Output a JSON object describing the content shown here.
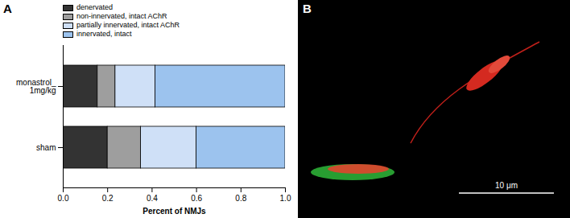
{
  "chart_data": {
    "type": "bar",
    "orientation": "horizontal",
    "stacked": true,
    "annotations": [
      "A"
    ],
    "categories": [
      "monastrol_\n1mg/kg",
      "sham"
    ],
    "series": [
      {
        "name": "denervated",
        "color": "#333333",
        "values": [
          0.155,
          0.2
        ]
      },
      {
        "name": "non-innervated, intact AChR",
        "color": "#9e9e9e",
        "values": [
          0.08,
          0.15
        ]
      },
      {
        "name": "partially innervated, intact AChR",
        "color": "#cfe0f7",
        "values": [
          0.18,
          0.25
        ]
      },
      {
        "name": "innervated, intact",
        "color": "#9cc3ee",
        "values": [
          0.585,
          0.4
        ]
      }
    ],
    "x_label": "Percent of NMJs",
    "xlim": [
      0,
      1
    ],
    "xticks": [
      {
        "value": 0,
        "label": "0.0"
      },
      {
        "value": 0.2,
        "label": "0.2"
      },
      {
        "value": 0.4,
        "label": "0.4"
      },
      {
        "value": 0.6,
        "label": "0.6"
      },
      {
        "value": 0.8,
        "label": "0.8"
      },
      {
        "value": 1,
        "label": "1.0"
      }
    ],
    "legend": "upper left"
  },
  "image_panel": {
    "label": "B",
    "scale_bar_label": "10 μm"
  }
}
